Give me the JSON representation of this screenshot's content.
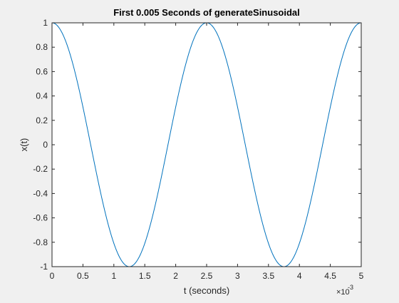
{
  "chart_data": {
    "type": "line",
    "title": "First 0.005 Seconds of generateSinusoidal",
    "xlabel": "t (seconds)",
    "ylabel": "x(t)",
    "x_exponent_multiplier": "×10",
    "x_exponent_power": "-3",
    "xlim": [
      0,
      0.005
    ],
    "ylim": [
      -1,
      1
    ],
    "xticks": [
      0,
      0.0005,
      0.001,
      0.0015,
      0.002,
      0.0025,
      0.003,
      0.0035,
      0.004,
      0.0045,
      0.005
    ],
    "xtick_labels": [
      "0",
      "0.5",
      "1",
      "1.5",
      "2",
      "2.5",
      "3",
      "3.5",
      "4",
      "4.5",
      "5"
    ],
    "yticks": [
      -1,
      -0.8,
      -0.6,
      -0.4,
      -0.2,
      0,
      0.2,
      0.4,
      0.6,
      0.8,
      1
    ],
    "ytick_labels": [
      "-1",
      "-0.8",
      "-0.6",
      "-0.4",
      "-0.2",
      "0",
      "0.2",
      "0.4",
      "0.6",
      "0.8",
      "1"
    ],
    "grid": false,
    "series": [
      {
        "color": "#0072bd",
        "frequency_hz": 400,
        "amplitude": 1,
        "phase": 0,
        "x": [
          0,
          0.000625,
          0.00125,
          0.001875,
          0.0025,
          0.003125,
          0.00375,
          0.004375,
          0.005
        ],
        "values": [
          1,
          0,
          -1,
          0,
          1,
          0,
          -1,
          0,
          1
        ]
      }
    ]
  }
}
